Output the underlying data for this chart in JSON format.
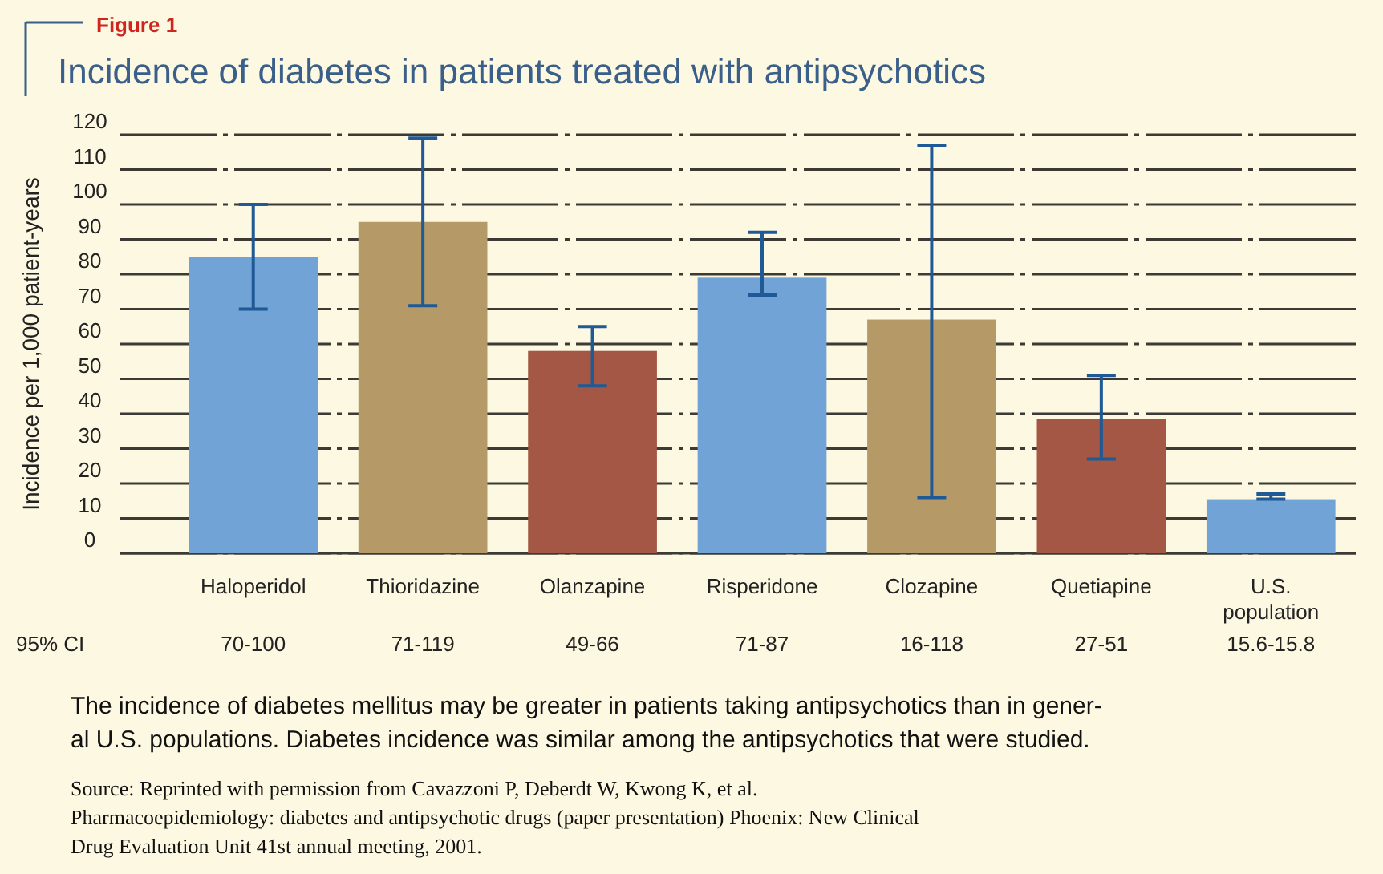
{
  "chart_data": {
    "type": "bar",
    "subtitle": "Figure 1",
    "title": "Incidence of diabetes in patients treated with antipsychotics",
    "ylabel": "Incidence per 1,000 patient-years",
    "categories": [
      "Haloperidol",
      "Thioridazine",
      "Olanzapine",
      "Risperidone",
      "Clozapine",
      "Quetiapine",
      "U.S. population"
    ],
    "values": [
      85,
      95,
      58,
      79,
      67,
      38.5,
      15.5
    ],
    "colors": [
      "#72a3d6",
      "#b59a68",
      "#a35744",
      "#72a3d6",
      "#b59a68",
      "#a35744",
      "#72a3d6"
    ],
    "errors": [
      [
        70,
        100
      ],
      [
        71,
        119
      ],
      [
        48,
        65
      ],
      [
        74,
        92
      ],
      [
        16,
        117
      ],
      [
        27,
        51
      ],
      [
        15.5,
        17
      ]
    ],
    "ylim": [
      0,
      120
    ],
    "yticks": [
      0,
      10,
      20,
      30,
      40,
      50,
      60,
      70,
      80,
      90,
      100,
      110,
      120
    ],
    "grid": "y",
    "annotations": [
      "95% CI",
      "70-100",
      "71-119",
      "49-66",
      "71-87",
      "16-118",
      "27-51",
      "15.6-15.8",
      "The incidence of diabetes mellitus may be greater in patients taking antipsychotics than in gener-",
      "al U.S. populations. Diabetes incidence was similar among the antipsychotics that were studied.",
      "Source: Reprinted with permission from Cavazzoni P, Deberdt W, Kwong K, et al.",
      "Pharmacoepidemiology: diabetes and antipsychotic drugs (paper presentation) Phoenix: New Clinical",
      "Drug Evaluation Unit 41st annual meeting, 2001."
    ]
  }
}
